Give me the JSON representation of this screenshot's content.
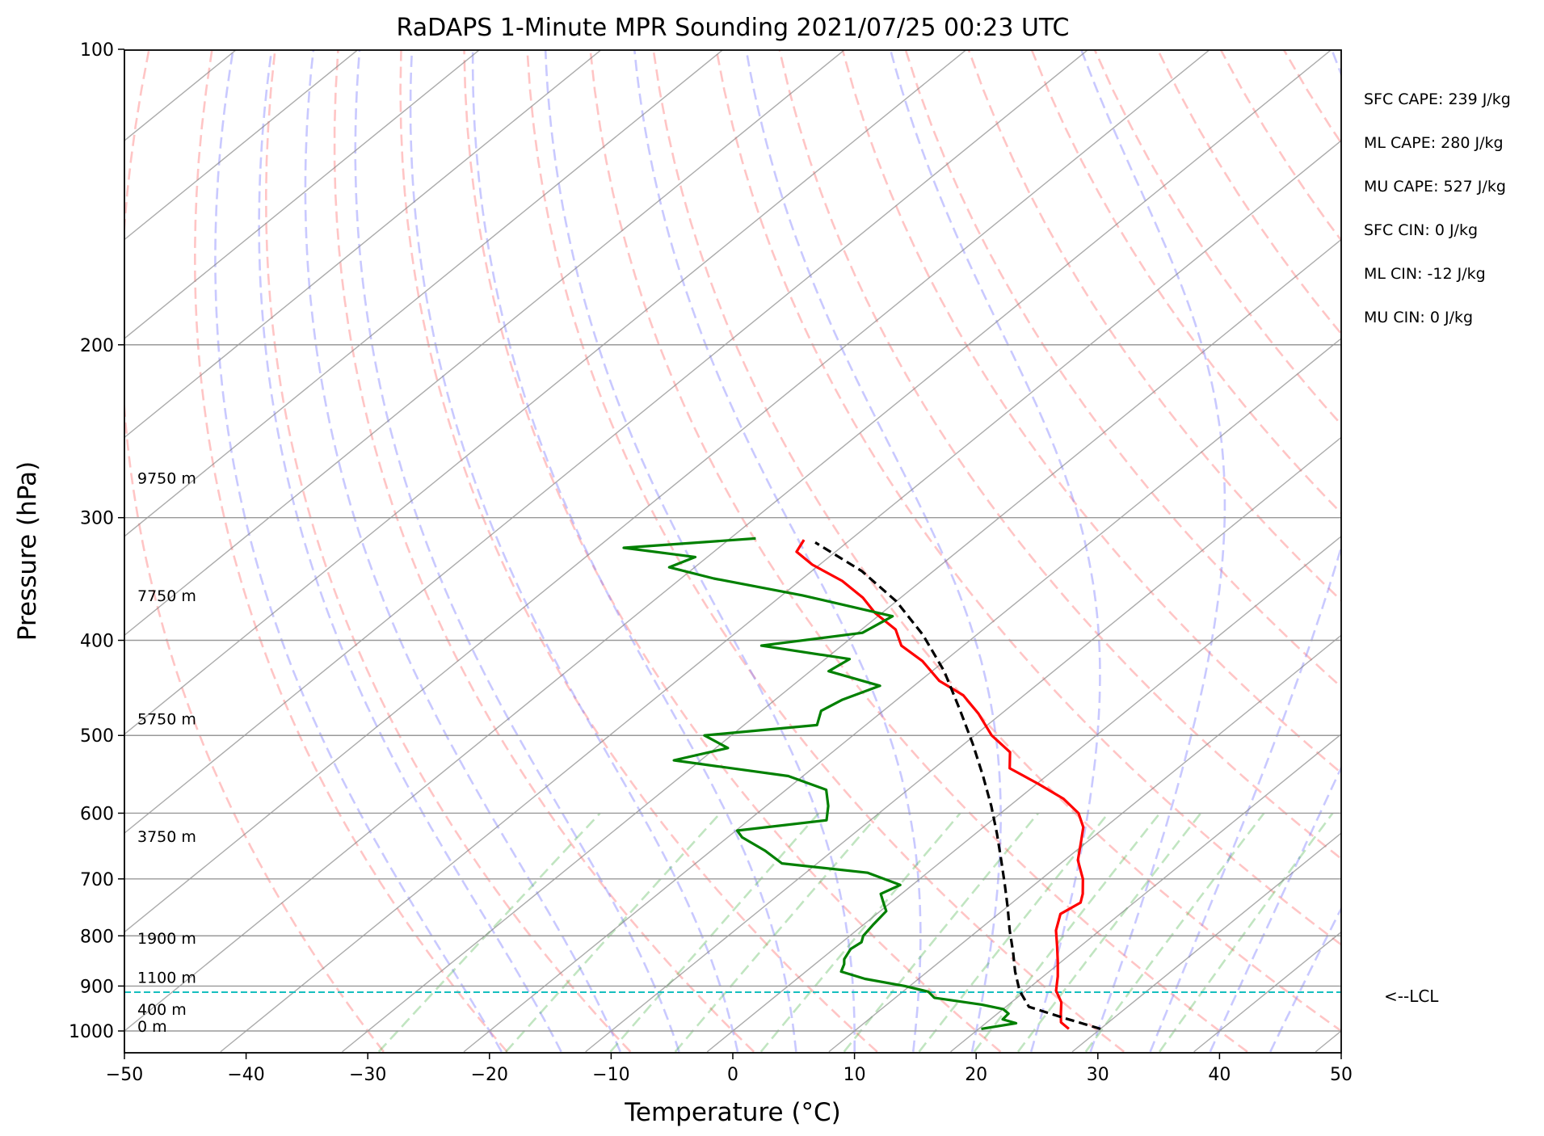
{
  "chart_data": {
    "type": "line",
    "title": "RaDAPS 1-Minute MPR Sounding 2021/07/25 00:23 UTC",
    "xlabel": "Temperature (°C)",
    "ylabel": "Pressure (hPa)",
    "xlim": [
      -50,
      50
    ],
    "ylim": [
      1050,
      100
    ],
    "y_scale": "log",
    "skew": "skew-T log-P",
    "grid": true,
    "x_ticks": [
      -50,
      -40,
      -30,
      -20,
      -10,
      0,
      10,
      20,
      30,
      40,
      50
    ],
    "x_tick_labels": [
      "−50",
      "−40",
      "−30",
      "−20",
      "−10",
      "0",
      "10",
      "20",
      "30",
      "40",
      "50"
    ],
    "y_ticks": [
      100,
      200,
      300,
      400,
      500,
      600,
      700,
      800,
      900,
      1000
    ],
    "y_tick_labels": [
      "100",
      "200",
      "300",
      "400",
      "500",
      "600",
      "700",
      "800",
      "900",
      "1000"
    ],
    "height_labels": [
      {
        "text": "9750 m",
        "p": 277
      },
      {
        "text": "7750 m",
        "p": 365
      },
      {
        "text": "5750 m",
        "p": 487
      },
      {
        "text": "3750 m",
        "p": 642
      },
      {
        "text": "1900 m",
        "p": 815
      },
      {
        "text": "1100 m",
        "p": 893
      },
      {
        "text": "400 m",
        "p": 963
      },
      {
        "text": "0 m",
        "p": 1002
      }
    ],
    "stats": [
      "SFC CAPE: 239 J/kg",
      "ML CAPE: 280 J/kg",
      "MU CAPE: 527 J/kg",
      "SFC CIN: 0 J/kg",
      "ML CIN: -12 J/kg",
      "MU CIN: 0 J/kg"
    ],
    "lcl": {
      "p": 913,
      "label": "<--LCL",
      "color": "#17bfbf"
    },
    "series": [
      {
        "key": "temperature",
        "color": "#ff0000",
        "points": [
          [
            27.4,
            995
          ],
          [
            26.1,
            980
          ],
          [
            25.2,
            960
          ],
          [
            24.1,
            935
          ],
          [
            22.5,
            910
          ],
          [
            21.2,
            880
          ],
          [
            19.7,
            850
          ],
          [
            18.1,
            820
          ],
          [
            16.4,
            790
          ],
          [
            15.1,
            760
          ],
          [
            15.6,
            740
          ],
          [
            14.9,
            725
          ],
          [
            13.4,
            700
          ],
          [
            11.1,
            670
          ],
          [
            9.4,
            640
          ],
          [
            8.2,
            620
          ],
          [
            6.4,
            600
          ],
          [
            3.7,
            580
          ],
          [
            0.1,
            560
          ],
          [
            -3.8,
            540
          ],
          [
            -5.4,
            520
          ],
          [
            -8.6,
            500
          ],
          [
            -11.9,
            475
          ],
          [
            -15.0,
            455
          ],
          [
            -18.4,
            440
          ],
          [
            -21.8,
            420
          ],
          [
            -25.1,
            405
          ],
          [
            -27.2,
            390
          ],
          [
            -30.6,
            375
          ],
          [
            -33.1,
            362
          ],
          [
            -36.5,
            348
          ],
          [
            -40.6,
            335
          ],
          [
            -43.2,
            325
          ],
          [
            -43.8,
            316
          ]
        ]
      },
      {
        "key": "dewpoint",
        "color": "#008000",
        "points": [
          [
            20.2,
            995
          ],
          [
            22.5,
            982
          ],
          [
            21.0,
            973
          ],
          [
            20.9,
            960
          ],
          [
            20.0,
            950
          ],
          [
            17.8,
            940
          ],
          [
            13.2,
            925
          ],
          [
            12.1,
            912
          ],
          [
            9.6,
            900
          ],
          [
            5.6,
            885
          ],
          [
            2.9,
            870
          ],
          [
            2.4,
            855
          ],
          [
            1.9,
            845
          ],
          [
            1.4,
            825
          ],
          [
            1.6,
            812
          ],
          [
            1.1,
            800
          ],
          [
            0.8,
            780
          ],
          [
            0.5,
            755
          ],
          [
            -0.6,
            740
          ],
          [
            -1.7,
            725
          ],
          [
            -1.0,
            710
          ],
          [
            -4.9,
            690
          ],
          [
            -12.9,
            675
          ],
          [
            -15.6,
            655
          ],
          [
            -18.8,
            635
          ],
          [
            -19.9,
            625
          ],
          [
            -13.6,
            610
          ],
          [
            -14.9,
            590
          ],
          [
            -16.7,
            568
          ],
          [
            -21.2,
            550
          ],
          [
            -32.2,
            530
          ],
          [
            -29.0,
            515
          ],
          [
            -32.2,
            500
          ],
          [
            -24.0,
            488
          ],
          [
            -25.1,
            472
          ],
          [
            -24.5,
            460
          ],
          [
            -22.8,
            445
          ],
          [
            -28.5,
            430
          ],
          [
            -28.0,
            418
          ],
          [
            -36.6,
            405
          ],
          [
            -29.6,
            393
          ],
          [
            -28.8,
            378
          ],
          [
            -38.3,
            360
          ],
          [
            -47.3,
            346
          ],
          [
            -52.1,
            337
          ],
          [
            -51.0,
            329
          ],
          [
            -57.8,
            322
          ],
          [
            -47.9,
            315
          ]
        ]
      },
      {
        "key": "parcel",
        "color": "#000000",
        "points": [
          [
            30.0,
            995
          ],
          [
            25.9,
            970
          ],
          [
            21.9,
            945
          ],
          [
            19.5,
            910
          ],
          [
            17.2,
            870
          ],
          [
            15.0,
            830
          ],
          [
            12.6,
            790
          ],
          [
            10.2,
            750
          ],
          [
            7.6,
            710
          ],
          [
            4.8,
            670
          ],
          [
            1.8,
            630
          ],
          [
            -1.5,
            590
          ],
          [
            -5.2,
            550
          ],
          [
            -9.3,
            510
          ],
          [
            -13.9,
            470
          ],
          [
            -19.0,
            430
          ],
          [
            -24.4,
            395
          ],
          [
            -30.0,
            365
          ],
          [
            -35.9,
            340
          ],
          [
            -42.6,
            318
          ]
        ]
      }
    ]
  }
}
